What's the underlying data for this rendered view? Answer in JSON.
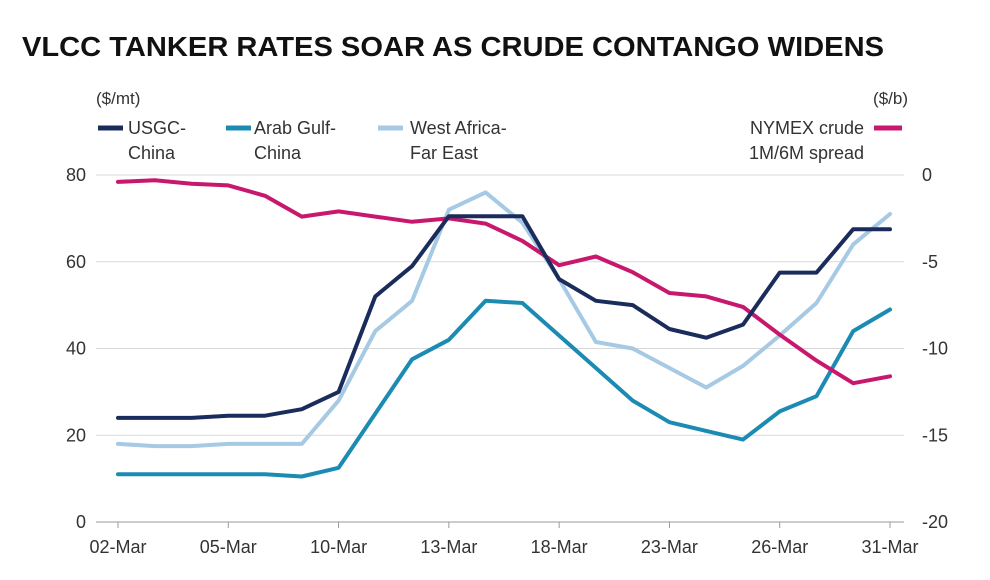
{
  "chart_data": {
    "type": "line",
    "title": "VLCC TANKER RATES SOAR AS CRUDE CONTANGO WIDENS",
    "left_unit": "($/mt)",
    "right_unit": "($/b)",
    "ylim_left": [
      0,
      80
    ],
    "ylim_right": [
      -20,
      0
    ],
    "left_ticks": [
      "0",
      "20",
      "40",
      "60",
      "80"
    ],
    "right_ticks": [
      "0",
      "-5",
      "-10",
      "-15",
      "-20"
    ],
    "x_tick_labels": [
      "02-Mar",
      "05-Mar",
      "10-Mar",
      "13-Mar",
      "18-Mar",
      "23-Mar",
      "26-Mar",
      "31-Mar"
    ],
    "x_tick_index": [
      0,
      3,
      6,
      9,
      12,
      15,
      18,
      21
    ],
    "grid": true,
    "colors": {
      "usgc": "#1a2c5b",
      "arab": "#1b8bb4",
      "west": "#a6c9e4",
      "nymex": "#c8186e",
      "grid": "#d9d9d9",
      "text": "#333333"
    },
    "series": [
      {
        "key": "usgc",
        "name": "USGC-China",
        "label_lines": [
          "USGC-",
          "China"
        ],
        "axis": "left",
        "color": "#1a2c5b",
        "values": [
          24,
          24,
          24,
          24.5,
          24.5,
          26,
          30,
          52,
          59,
          70.5,
          70.5,
          70.5,
          56,
          51,
          50,
          44.5,
          42.5,
          45.5,
          57.5,
          57.5,
          67.5,
          67.5
        ]
      },
      {
        "key": "arab",
        "name": "Arab Gulf-China",
        "label_lines": [
          "Arab Gulf-",
          "China"
        ],
        "axis": "left",
        "color": "#1b8bb4",
        "values": [
          11,
          11,
          11,
          11,
          11,
          10.5,
          12.5,
          25,
          37.5,
          42,
          51,
          50.5,
          43,
          35.5,
          28,
          23,
          21,
          19,
          25.5,
          29,
          44,
          49
        ]
      },
      {
        "key": "west",
        "name": "West Africa-Far East",
        "label_lines": [
          "West Africa-",
          "Far East"
        ],
        "axis": "left",
        "color": "#a6c9e4",
        "values": [
          18,
          17.5,
          17.5,
          18,
          18,
          18,
          28,
          44,
          51,
          72,
          76,
          69,
          56,
          41.5,
          40,
          35.5,
          31,
          36,
          43,
          50.5,
          64,
          71
        ]
      },
      {
        "key": "nymex",
        "name": "NYMEX crude 1M/6M spread",
        "label_lines": [
          "NYMEX crude",
          "1M/6M spread"
        ],
        "axis": "right",
        "color": "#c8186e",
        "values": [
          -0.4,
          -0.3,
          -0.5,
          -0.6,
          -1.2,
          -2.4,
          -2.1,
          -2.4,
          -2.7,
          -2.5,
          -2.8,
          -3.8,
          -5.2,
          -4.7,
          -5.6,
          -6.8,
          -7.0,
          -7.6,
          -9.2,
          -10.7,
          -12,
          -11.6
        ]
      }
    ]
  }
}
